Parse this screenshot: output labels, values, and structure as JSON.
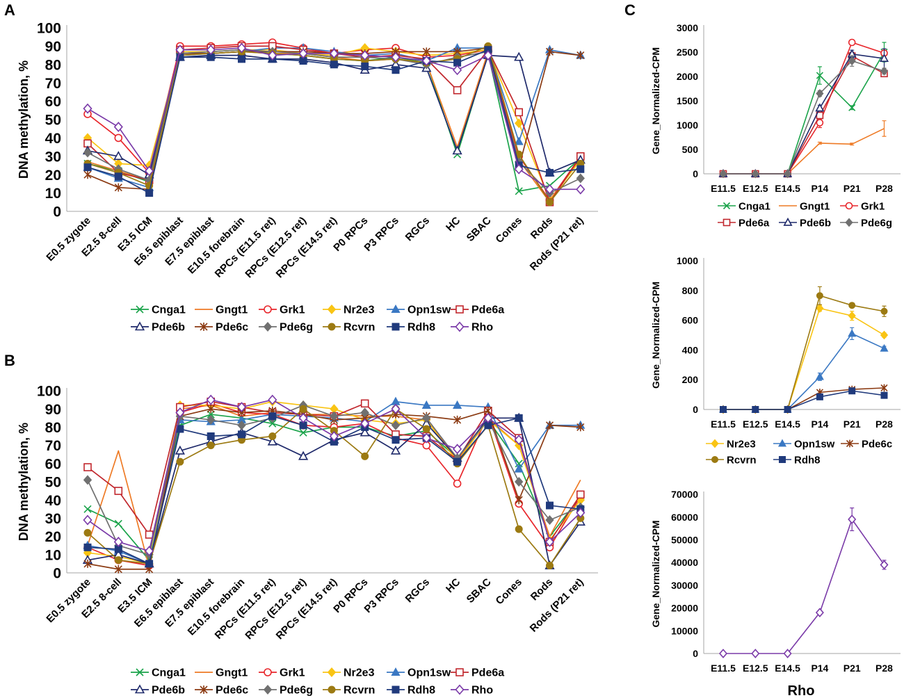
{
  "figure": {
    "panel_labels": {
      "a": "A",
      "b": "B",
      "c": "C"
    }
  },
  "series_styles": {
    "Cnga1": {
      "color": "#1aa34a",
      "marker": "x"
    },
    "Gngt1": {
      "color": "#ee7a25",
      "marker": "none"
    },
    "Grk1": {
      "color": "#e8262b",
      "marker": "circle-open"
    },
    "Nr2e3": {
      "color": "#f9c414",
      "marker": "diamond"
    },
    "Opn1sw": {
      "color": "#3a78c3",
      "marker": "triangle"
    },
    "Pde6a": {
      "color": "#c1272d",
      "marker": "square-open"
    },
    "Pde6b": {
      "color": "#1f2a6b",
      "marker": "triangle-open"
    },
    "Pde6c": {
      "color": "#8b3a12",
      "marker": "star"
    },
    "Pde6g": {
      "color": "#707070",
      "marker": "diamond"
    },
    "Rcvrn": {
      "color": "#9c7a12",
      "marker": "circle"
    },
    "Rdh8": {
      "color": "#203a7c",
      "marker": "square"
    },
    "Rho": {
      "color": "#7a3aa8",
      "marker": "diamond-open"
    }
  },
  "chart_data": [
    {
      "panel": "A",
      "type": "line",
      "title": "",
      "xlabel": "",
      "ylabel": "DNA methylation, %",
      "ylim": [
        0,
        100
      ],
      "yticks": [
        0,
        10,
        20,
        30,
        40,
        50,
        60,
        70,
        80,
        90,
        100
      ],
      "grid": false,
      "legend_position": "bottom",
      "legend_order": [
        "Cnga1",
        "Gngt1",
        "Grk1",
        "Nr2e3",
        "Opn1sw",
        "Pde6a",
        "Pde6b",
        "Pde6c",
        "Pde6g",
        "Rcvrn",
        "Rdh8",
        "Rho"
      ],
      "categories": [
        "E0.5 zygote",
        "E2.5 8-cell",
        "E3.5 ICM",
        "E6.5 epiblast",
        "E7.5 epiblast",
        "E10.5 forebrain",
        "RPCs (E11.5 ret)",
        "RPCs (E12.5 ret)",
        "RPCs (E14.5 ret)",
        "P0 RPCs",
        "P3 RPCs",
        "RGCs",
        "HC",
        "SBAC",
        "Cones",
        "Rods",
        "Rods (P21 ret)"
      ],
      "series": [
        {
          "name": "Cnga1",
          "values": [
            26,
            22,
            16,
            86,
            87,
            88,
            86,
            85,
            83,
            82,
            84,
            81,
            31,
            86,
            11,
            14,
            29
          ]
        },
        {
          "name": "Gngt1",
          "values": [
            27,
            22,
            17,
            86,
            86,
            87,
            86,
            86,
            84,
            82,
            83,
            81,
            35,
            87,
            28,
            5,
            29
          ]
        },
        {
          "name": "Grk1",
          "values": [
            53,
            40,
            21,
            90,
            90,
            91,
            92,
            89,
            86,
            88,
            89,
            84,
            85,
            88,
            30,
            6,
            30
          ]
        },
        {
          "name": "Nr2e3",
          "values": [
            40,
            26,
            25,
            87,
            87,
            88,
            88,
            86,
            85,
            89,
            87,
            85,
            86,
            88,
            48,
            6,
            28
          ]
        },
        {
          "name": "Opn1sw",
          "values": [
            24,
            18,
            13,
            85,
            86,
            87,
            89,
            89,
            87,
            85,
            86,
            82,
            89,
            89,
            38,
            88,
            85
          ]
        },
        {
          "name": "Pde6a",
          "values": [
            37,
            21,
            17,
            88,
            89,
            90,
            90,
            88,
            86,
            84,
            85,
            83,
            66,
            88,
            54,
            5,
            30
          ]
        },
        {
          "name": "Pde6b",
          "values": [
            33,
            30,
            20,
            84,
            85,
            85,
            83,
            83,
            81,
            77,
            80,
            78,
            33,
            85,
            84,
            21,
            28
          ]
        },
        {
          "name": "Pde6c",
          "values": [
            20,
            13,
            12,
            86,
            86,
            87,
            87,
            87,
            86,
            86,
            87,
            87,
            87,
            89,
            24,
            87,
            85
          ]
        },
        {
          "name": "Pde6g",
          "values": [
            32,
            23,
            17,
            86,
            87,
            88,
            87,
            86,
            84,
            84,
            83,
            80,
            84,
            87,
            27,
            10,
            18
          ]
        },
        {
          "name": "Rcvrn",
          "values": [
            26,
            21,
            14,
            85,
            86,
            87,
            86,
            85,
            83,
            82,
            83,
            81,
            83,
            90,
            31,
            5,
            26
          ]
        },
        {
          "name": "Rdh8",
          "values": [
            24,
            19,
            10,
            84,
            84,
            83,
            83,
            82,
            80,
            79,
            77,
            82,
            81,
            88,
            25,
            21,
            23
          ]
        },
        {
          "name": "Rho",
          "values": [
            56,
            46,
            22,
            88,
            88,
            89,
            85,
            86,
            86,
            85,
            84,
            82,
            77,
            85,
            23,
            12,
            12
          ]
        }
      ]
    },
    {
      "panel": "B",
      "type": "line",
      "title": "",
      "xlabel": "",
      "ylabel": "DNA methylation, %",
      "ylim": [
        0,
        100
      ],
      "yticks": [
        0,
        10,
        20,
        30,
        40,
        50,
        60,
        70,
        80,
        90,
        100
      ],
      "grid": false,
      "legend_position": "bottom",
      "legend_order": [
        "Cnga1",
        "Gngt1",
        "Grk1",
        "Nr2e3",
        "Opn1sw",
        "Pde6a",
        "Pde6b",
        "Pde6c",
        "Pde6g",
        "Rcvrn",
        "Rdh8",
        "Rho"
      ],
      "categories": [
        "E0.5 zygote",
        "E2.5 8-cell",
        "E3.5 ICM",
        "E6.5 epiblast",
        "E7.5 epiblast",
        "E10.5 forebrain",
        "RPCs (E11.5 ret)",
        "RPCs (E12.5 ret)",
        "RPCs (E14.5 ret)",
        "P0 RPCs",
        "P3 RPCs",
        "RGCs",
        "HC",
        "SBAC",
        "Cones",
        "Rods",
        "Rods (P21 ret)"
      ],
      "series": [
        {
          "name": "Cnga1",
          "values": [
            35,
            27,
            7,
            81,
            87,
            85,
            82,
            77,
            80,
            80,
            75,
            78,
            63,
            84,
            60,
            20,
            42
          ]
        },
        {
          "name": "Gngt1",
          "values": [
            15,
            67,
            3,
            90,
            92,
            86,
            88,
            87,
            87,
            86,
            86,
            84,
            62,
            85,
            70,
            20,
            51
          ]
        },
        {
          "name": "Grk1",
          "values": [
            14,
            7,
            4,
            88,
            93,
            88,
            87,
            81,
            80,
            82,
            74,
            70,
            49,
            87,
            38,
            14,
            42
          ]
        },
        {
          "name": "Nr2e3",
          "values": [
            11,
            9,
            5,
            92,
            92,
            90,
            94,
            92,
            90,
            84,
            82,
            84,
            61,
            84,
            70,
            18,
            40
          ]
        },
        {
          "name": "Opn1sw",
          "values": [
            15,
            12,
            5,
            84,
            83,
            84,
            87,
            86,
            85,
            83,
            94,
            92,
            92,
            91,
            57,
            81,
            81
          ]
        },
        {
          "name": "Pde6a",
          "values": [
            58,
            45,
            21,
            91,
            94,
            91,
            88,
            87,
            86,
            93,
            76,
            75,
            62,
            89,
            74,
            17,
            43
          ]
        },
        {
          "name": "Pde6b",
          "values": [
            7,
            10,
            5,
            67,
            72,
            77,
            72,
            64,
            73,
            77,
            67,
            82,
            63,
            85,
            85,
            4,
            28
          ]
        },
        {
          "name": "Pde6c",
          "values": [
            5,
            2,
            2,
            86,
            90,
            88,
            89,
            87,
            84,
            85,
            87,
            86,
            84,
            89,
            40,
            81,
            80
          ]
        },
        {
          "name": "Pde6g",
          "values": [
            51,
            15,
            10,
            86,
            84,
            81,
            85,
            92,
            86,
            88,
            81,
            85,
            63,
            84,
            50,
            29,
            36
          ]
        },
        {
          "name": "Rcvrn",
          "values": [
            22,
            7,
            5,
            61,
            70,
            73,
            75,
            90,
            78,
            64,
            90,
            79,
            60,
            81,
            24,
            4,
            30
          ]
        },
        {
          "name": "Rdh8",
          "values": [
            14,
            13,
            5,
            79,
            75,
            76,
            86,
            81,
            72,
            80,
            73,
            74,
            61,
            81,
            85,
            37,
            35
          ]
        },
        {
          "name": "Rho",
          "values": [
            29,
            17,
            12,
            88,
            95,
            91,
            95,
            85,
            75,
            82,
            90,
            74,
            68,
            85,
            73,
            17,
            33
          ]
        }
      ]
    },
    {
      "panel": "C1",
      "type": "line",
      "title": "",
      "xlabel": "",
      "ylabel": "Gene_Normalized-CPM",
      "ylim": [
        0,
        3000
      ],
      "yticks": [
        0,
        500,
        1000,
        1500,
        2000,
        2500,
        3000
      ],
      "grid": false,
      "legend_position": "bottom",
      "legend_rows": [
        [
          "Cnga1",
          "Gngt1",
          "Grk1"
        ],
        [
          "Pde6a",
          "Pde6b",
          "Pde6g"
        ]
      ],
      "categories": [
        "E11.5",
        "E12.5",
        "E14.5",
        "P14",
        "P21",
        "P28"
      ],
      "series": [
        {
          "name": "Cnga1",
          "values": [
            0,
            0,
            0,
            2020,
            1360,
            2500
          ],
          "errors": [
            0,
            0,
            0,
            180,
            40,
            200
          ]
        },
        {
          "name": "Gngt1",
          "values": [
            0,
            0,
            0,
            630,
            610,
            930
          ],
          "errors": [
            0,
            0,
            0,
            20,
            20,
            160
          ]
        },
        {
          "name": "Grk1",
          "values": [
            0,
            0,
            0,
            1050,
            2700,
            2480
          ],
          "errors": [
            0,
            0,
            0,
            100,
            40,
            60
          ]
        },
        {
          "name": "Pde6a",
          "values": [
            0,
            0,
            0,
            1200,
            2420,
            2060
          ],
          "errors": [
            0,
            0,
            0,
            60,
            80,
            60
          ]
        },
        {
          "name": "Pde6b",
          "values": [
            0,
            0,
            0,
            1350,
            2460,
            2370
          ],
          "errors": [
            0,
            0,
            0,
            60,
            80,
            200
          ]
        },
        {
          "name": "Pde6g",
          "values": [
            0,
            0,
            0,
            1650,
            2320,
            2110
          ],
          "errors": [
            0,
            0,
            0,
            60,
            110,
            60
          ]
        }
      ]
    },
    {
      "panel": "C2",
      "type": "line",
      "title": "",
      "xlabel": "",
      "ylabel": "Gene_Normalized-CPM",
      "ylim": [
        0,
        1000
      ],
      "yticks": [
        0,
        200,
        400,
        600,
        800,
        1000
      ],
      "grid": false,
      "legend_position": "bottom",
      "legend_rows": [
        [
          "Nr2e3",
          "Opn1sw",
          "Pde6c"
        ],
        [
          "Rcvrn",
          "Rdh8"
        ]
      ],
      "categories": [
        "E11.5",
        "E12.5",
        "E14.5",
        "P14",
        "P21",
        "P28"
      ],
      "series": [
        {
          "name": "Nr2e3",
          "values": [
            0,
            0,
            0,
            680,
            630,
            500
          ],
          "errors": [
            0,
            0,
            0,
            20,
            30,
            15
          ]
        },
        {
          "name": "Opn1sw",
          "values": [
            0,
            0,
            0,
            220,
            510,
            410
          ],
          "errors": [
            0,
            0,
            0,
            25,
            40,
            15
          ]
        },
        {
          "name": "Pde6c",
          "values": [
            0,
            0,
            0,
            115,
            135,
            145
          ],
          "errors": [
            0,
            0,
            0,
            8,
            8,
            8
          ]
        },
        {
          "name": "Rcvrn",
          "values": [
            0,
            0,
            0,
            765,
            700,
            660
          ],
          "errors": [
            0,
            0,
            0,
            60,
            15,
            35
          ]
        },
        {
          "name": "Rdh8",
          "values": [
            0,
            0,
            0,
            85,
            125,
            95
          ],
          "errors": [
            0,
            0,
            0,
            8,
            8,
            8
          ]
        }
      ]
    },
    {
      "panel": "C3",
      "type": "line",
      "title": "",
      "xlabel": "Rho",
      "ylabel": "Gene_Normalized-CPM",
      "ylim": [
        0,
        70000
      ],
      "yticks": [
        0,
        10000,
        20000,
        30000,
        40000,
        50000,
        60000,
        70000
      ],
      "grid": false,
      "legend_position": "none",
      "categories": [
        "E11.5",
        "E12.5",
        "E14.5",
        "P14",
        "P21",
        "P28"
      ],
      "series": [
        {
          "name": "Rho",
          "values": [
            0,
            0,
            0,
            18000,
            59000,
            39000
          ],
          "errors": [
            0,
            0,
            0,
            500,
            5000,
            2000
          ]
        }
      ]
    }
  ]
}
